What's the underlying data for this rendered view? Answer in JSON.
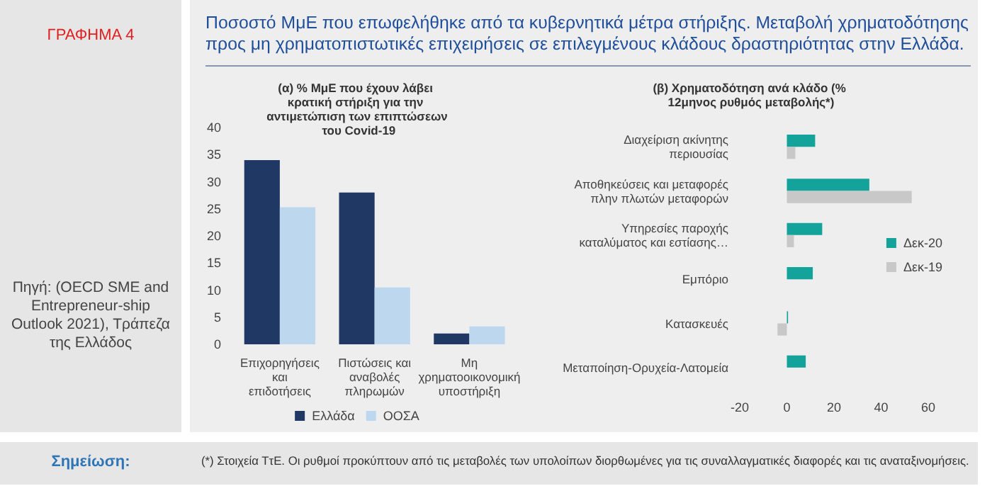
{
  "chart_data": [
    {
      "type": "bar",
      "title": "(α) % ΜμΕ που έχουν λάβει κρατική στήριξη για την αντιμετώπιση των επιπτώσεων του Covid-19",
      "categories": [
        "Επιχορηγήσεις και επιδοτήσεις",
        "Πιστώσεις και αναβολές πληρωμών",
        "Μη χρηματοοικονομική υποστήριξη"
      ],
      "series": [
        {
          "name": "Ελλάδα",
          "color": "#1f3864",
          "values": [
            34,
            28,
            2
          ]
        },
        {
          "name": "ΟΟΣΑ",
          "color": "#bdd7ee",
          "values": [
            25.3,
            10.5,
            3.3
          ]
        }
      ],
      "ylim": [
        0,
        40
      ],
      "yticks": [
        0,
        5,
        10,
        15,
        20,
        25,
        30,
        35,
        40
      ],
      "grid": false,
      "legend": "bottom",
      "annotations": [
        "ΓΡΑΦΗΜΑ 4",
        "Ποσοστό ΜμΕ που επωφελήθηκε από τα κυβερνητικά μέτρα στήριξης. Μεταβολή χρηματοδότησης προς μη χρηματοπιστωτικές επιχειρήσεις σε επιλεγμένους κλάδους δραστηριότητας στην Ελλάδα.",
        "Πηγή: (OECD SME and Entrepreneur-ship Outlook 2021), Τράπεζα της Ελλάδος",
        "Σημείωση:",
        "(*) Στοιχεία ΤτΕ. Οι ρυθμοί προκύπτουν από τις μεταβολές των υπολοίπων διορθωμένες για τις συναλλαγματικές διαφορές και τις αναταξινομήσεις."
      ]
    },
    {
      "type": "bar",
      "orientation": "horizontal",
      "title": "(β) Χρηματοδότηση ανά κλάδο (% 12μηνος ρυθμός μεταβολής*)",
      "categories": [
        "Διαχείριση ακίνητης περιουσίας",
        "Αποθηκεύσεις και μεταφορές πλην πλωτών μεταφορών",
        "Υπηρεσίες παροχής καταλύματος και εστίασης…",
        "Εμπόριο",
        "Κατασκευές",
        "Μεταποίηση-Ορυχεία-Λατομεία"
      ],
      "series": [
        {
          "name": "Δεκ-20",
          "color": "#13a39a",
          "values": [
            12,
            35,
            15,
            11,
            0.5,
            8
          ]
        },
        {
          "name": "Δεκ-19",
          "color": "#c8c8c8",
          "values": [
            3.6,
            53,
            3,
            0,
            -4,
            0
          ]
        }
      ],
      "xlim": [
        -20,
        60
      ],
      "xticks": [
        -20,
        0,
        20,
        40,
        60
      ],
      "grid": false,
      "legend": "right"
    }
  ]
}
